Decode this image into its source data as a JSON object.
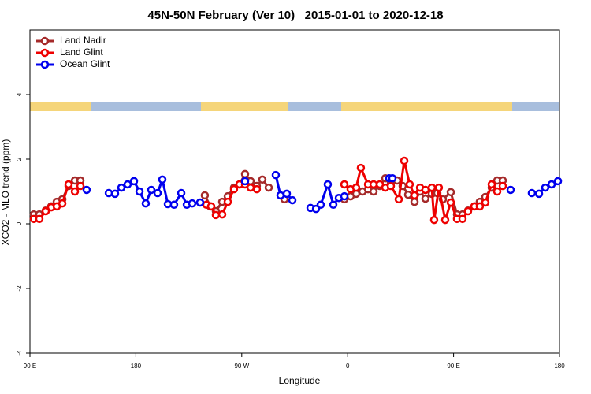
{
  "chart_data": {
    "type": "line",
    "title": "45N-50N February (Ver 10)   2015-01-01 to 2020-12-18",
    "xlabel": "Longitude",
    "ylabel": "XCO2 - MLO trend (ppm)",
    "xlim": [
      90,
      540
    ],
    "ylim": [
      -4,
      6
    ],
    "xticks": [
      {
        "value": 90,
        "label": "90 E"
      },
      180,
      {
        "value": 270,
        "label": "90 W"
      },
      {
        "value": 360,
        "label": "0"
      },
      {
        "value": 450,
        "label": "90 E"
      },
      {
        "value": 540,
        "label": "180"
      }
    ],
    "yticks": [
      -4,
      -2,
      0,
      2,
      4
    ],
    "legend": "top-left",
    "series": [
      {
        "name": "Land Nadir",
        "color": "#a52a2a",
        "x": [
          93.3,
          98.0,
          103.4,
          108.1,
          112.8,
          117.5,
          122.8,
          128.2,
          132.9,
          null,
          238.6,
          243.3,
          248.0,
          253.4,
          258.1,
          263.4,
          268.1,
          272.8,
          277.5,
          282.8,
          287.5,
          292.9,
          null,
          306.3,
          null,
          357.2,
          362.5,
          367.2,
          372.6,
          377.3,
          382.0,
          387.3,
          392.0,
          396.7,
          402.0,
          406.7,
          411.4,
          416.8,
          421.5,
          426.1,
          431.5,
          436.2,
          440.9,
          447.6,
          452.9,
          457.6,
          462.3,
          467.7,
          472.3,
          477.0,
          482.4,
          487.1,
          491.8
        ],
        "values": [
          0.29,
          0.29,
          0.41,
          0.54,
          0.68,
          0.76,
          1.17,
          1.34,
          1.34,
          null,
          0.88,
          0.54,
          0.39,
          0.68,
          0.85,
          1.12,
          1.22,
          1.54,
          1.32,
          1.17,
          1.37,
          1.12,
          null,
          0.76,
          null,
          0.76,
          0.85,
          0.93,
          1.0,
          1.07,
          1.0,
          1.17,
          1.41,
          1.27,
          1.34,
          1.17,
          0.9,
          0.68,
          1.0,
          0.78,
          0.93,
          0.95,
          0.76,
          0.98,
          0.29,
          0.29,
          0.41,
          0.54,
          0.68,
          0.83,
          1.12,
          1.34,
          1.34
        ]
      },
      {
        "name": "Land Glint",
        "color": "#ee0000",
        "x": [
          93.3,
          98.0,
          103.4,
          108.1,
          112.8,
          117.5,
          122.8,
          128.2,
          132.9,
          null,
          240.0,
          244.0,
          248.0,
          253.4,
          258.1,
          263.4,
          268.1,
          272.8,
          277.5,
          282.8,
          null,
          357.2,
          362.5,
          367.2,
          371.2,
          377.3,
          382.0,
          387.3,
          392.0,
          396.7,
          403.4,
          408.1,
          412.7,
          416.8,
          421.5,
          426.1,
          431.5,
          433.5,
          437.5,
          442.9,
          447.6,
          452.9,
          457.6,
          462.3,
          467.7,
          472.3,
          477.0,
          482.4,
          487.1,
          491.8
        ],
        "values": [
          0.15,
          0.15,
          0.39,
          0.51,
          0.54,
          0.63,
          1.22,
          1.0,
          1.17,
          null,
          0.59,
          0.54,
          0.27,
          0.29,
          0.68,
          1.07,
          1.22,
          1.22,
          1.12,
          1.07,
          null,
          1.22,
          1.07,
          1.12,
          1.73,
          1.22,
          1.22,
          1.22,
          1.12,
          1.17,
          0.76,
          1.95,
          1.22,
          0.88,
          1.12,
          1.05,
          1.12,
          0.12,
          1.12,
          0.12,
          0.66,
          0.15,
          0.15,
          0.39,
          0.54,
          0.54,
          0.66,
          1.22,
          1.0,
          1.17
        ]
      },
      {
        "name": "Ocean Glint",
        "color": "#0000ee",
        "x": [
          138.2,
          null,
          157.0,
          162.3,
          167.7,
          173.0,
          178.4,
          183.1,
          188.4,
          193.1,
          198.5,
          202.5,
          207.2,
          212.5,
          218.6,
          223.3,
          227.9,
          234.6,
          null,
          272.8,
          null,
          298.9,
          302.9,
          308.3,
          313.0,
          null,
          328.4,
          333.1,
          337.1,
          343.1,
          347.8,
          352.5,
          357.2,
          null,
          395.3,
          398.0,
          null,
          498.5,
          null,
          516.5,
          522.6,
          527.9,
          533.3,
          538.7
        ],
        "values": [
          1.05,
          null,
          0.95,
          0.93,
          1.12,
          1.22,
          1.32,
          1.0,
          0.63,
          1.05,
          0.95,
          1.37,
          0.61,
          0.59,
          0.95,
          0.59,
          0.63,
          0.66,
          null,
          1.32,
          null,
          1.51,
          0.88,
          0.93,
          0.73,
          null,
          0.49,
          0.46,
          0.59,
          1.22,
          0.59,
          0.8,
          0.85,
          null,
          1.41,
          1.41,
          null,
          1.05,
          null,
          0.95,
          0.93,
          1.12,
          1.22,
          1.32
        ]
      }
    ]
  }
}
